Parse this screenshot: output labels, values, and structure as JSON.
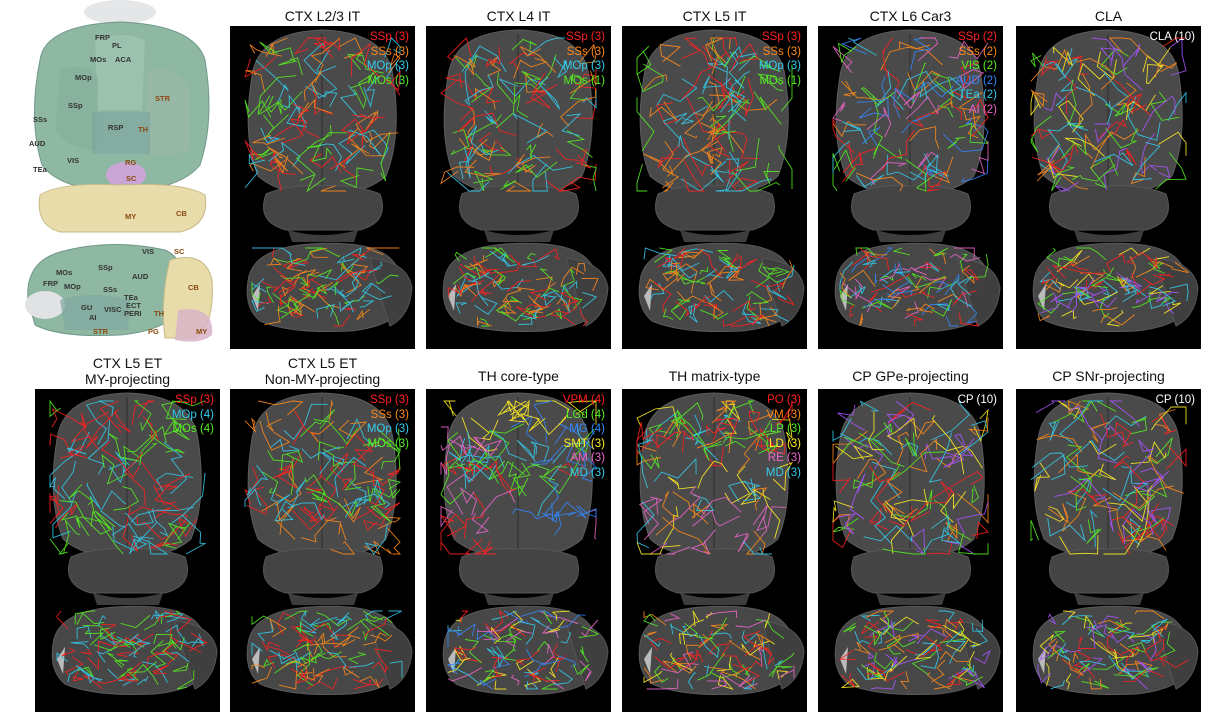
{
  "atlas": {
    "dorsal_labels": [
      "FRP",
      "PL",
      "MOs",
      "ACA",
      "MOp",
      "SSp",
      "STR",
      "SSs",
      "RSP",
      "TH",
      "AUD",
      "VIS",
      "TEa",
      "RG",
      "SC",
      "MY",
      "CB"
    ],
    "lateral_labels": [
      "SC",
      "VIS",
      "MOs",
      "SSp",
      "FRP",
      "MOp",
      "AUD",
      "SSs",
      "GU",
      "VISC",
      "TEa",
      "ECT",
      "AI",
      "PERI",
      "TH",
      "STR",
      "PG",
      "MY",
      "CB"
    ]
  },
  "panels": [
    {
      "title": "CTX L2/3 IT",
      "legend": [
        {
          "label": "SSp (3)",
          "color": "#ff2020"
        },
        {
          "label": "SSs (3)",
          "color": "#ff8a1a"
        },
        {
          "label": "MOp (3)",
          "color": "#33ccee"
        },
        {
          "label": "MOs (3)",
          "color": "#55ee22"
        }
      ]
    },
    {
      "title": "CTX L4 IT",
      "legend": [
        {
          "label": "SSp (3)",
          "color": "#ff2020"
        },
        {
          "label": "SSs (3)",
          "color": "#ff8a1a"
        },
        {
          "label": "MOp (3)",
          "color": "#33ccee"
        },
        {
          "label": "MOs (1)",
          "color": "#55ee22"
        }
      ]
    },
    {
      "title": "CTX L5 IT",
      "legend": [
        {
          "label": "SSp (3)",
          "color": "#ff2020"
        },
        {
          "label": "SSs (3)",
          "color": "#ff8a1a"
        },
        {
          "label": "MOp (3)",
          "color": "#33ccee"
        },
        {
          "label": "MOs (1)",
          "color": "#55ee22"
        }
      ]
    },
    {
      "title": "CTX L6 Car3",
      "legend": [
        {
          "label": "SSp (2)",
          "color": "#ff2020"
        },
        {
          "label": "SSs (2)",
          "color": "#ff8a1a"
        },
        {
          "label": "VIS (2)",
          "color": "#55ee22"
        },
        {
          "label": "AUD (2)",
          "color": "#3388ff"
        },
        {
          "label": "TEa (2)",
          "color": "#33ccee"
        },
        {
          "label": "AI (2)",
          "color": "#ee66cc"
        }
      ]
    },
    {
      "title": "CLA",
      "legend": [
        {
          "label": "CLA (10)",
          "color": "#ffffff"
        }
      ]
    },
    {
      "title": "CTX L5 ET\nMY-projecting",
      "legend": [
        {
          "label": "SSp (3)",
          "color": "#ff2020"
        },
        {
          "label": "MOp (4)",
          "color": "#33ccee"
        },
        {
          "label": "MOs (4)",
          "color": "#55ee22"
        }
      ]
    },
    {
      "title": "CTX L5 ET\nNon-MY-projecting",
      "legend": [
        {
          "label": "SSp (3)",
          "color": "#ff2020"
        },
        {
          "label": "SSs (3)",
          "color": "#ff8a1a"
        },
        {
          "label": "MOp (3)",
          "color": "#33ccee"
        },
        {
          "label": "MOs (3)",
          "color": "#55ee22"
        }
      ]
    },
    {
      "title": "TH core-type",
      "legend": [
        {
          "label": "VPM (4)",
          "color": "#ff2020"
        },
        {
          "label": "LGd (4)",
          "color": "#55ee22"
        },
        {
          "label": "MG (4)",
          "color": "#3388ff"
        },
        {
          "label": "SMT (3)",
          "color": "#ffee22"
        },
        {
          "label": "AM (3)",
          "color": "#ee66cc"
        },
        {
          "label": "MD (3)",
          "color": "#33ccee"
        }
      ]
    },
    {
      "title": "TH matrix-type",
      "legend": [
        {
          "label": "PO (3)",
          "color": "#ff2020"
        },
        {
          "label": "VM (3)",
          "color": "#ff8a1a"
        },
        {
          "label": "LP (3)",
          "color": "#55ee22"
        },
        {
          "label": "LD (3)",
          "color": "#ffee22"
        },
        {
          "label": "RE (3)",
          "color": "#ee66cc"
        },
        {
          "label": "MD (3)",
          "color": "#33ccee"
        }
      ]
    },
    {
      "title": "CP GPe-projecting",
      "legend": [
        {
          "label": "CP (10)",
          "color": "#ffffff"
        }
      ]
    },
    {
      "title": "CP SNr-projecting",
      "legend": [
        {
          "label": "CP (10)",
          "color": "#ffffff"
        }
      ]
    }
  ]
}
